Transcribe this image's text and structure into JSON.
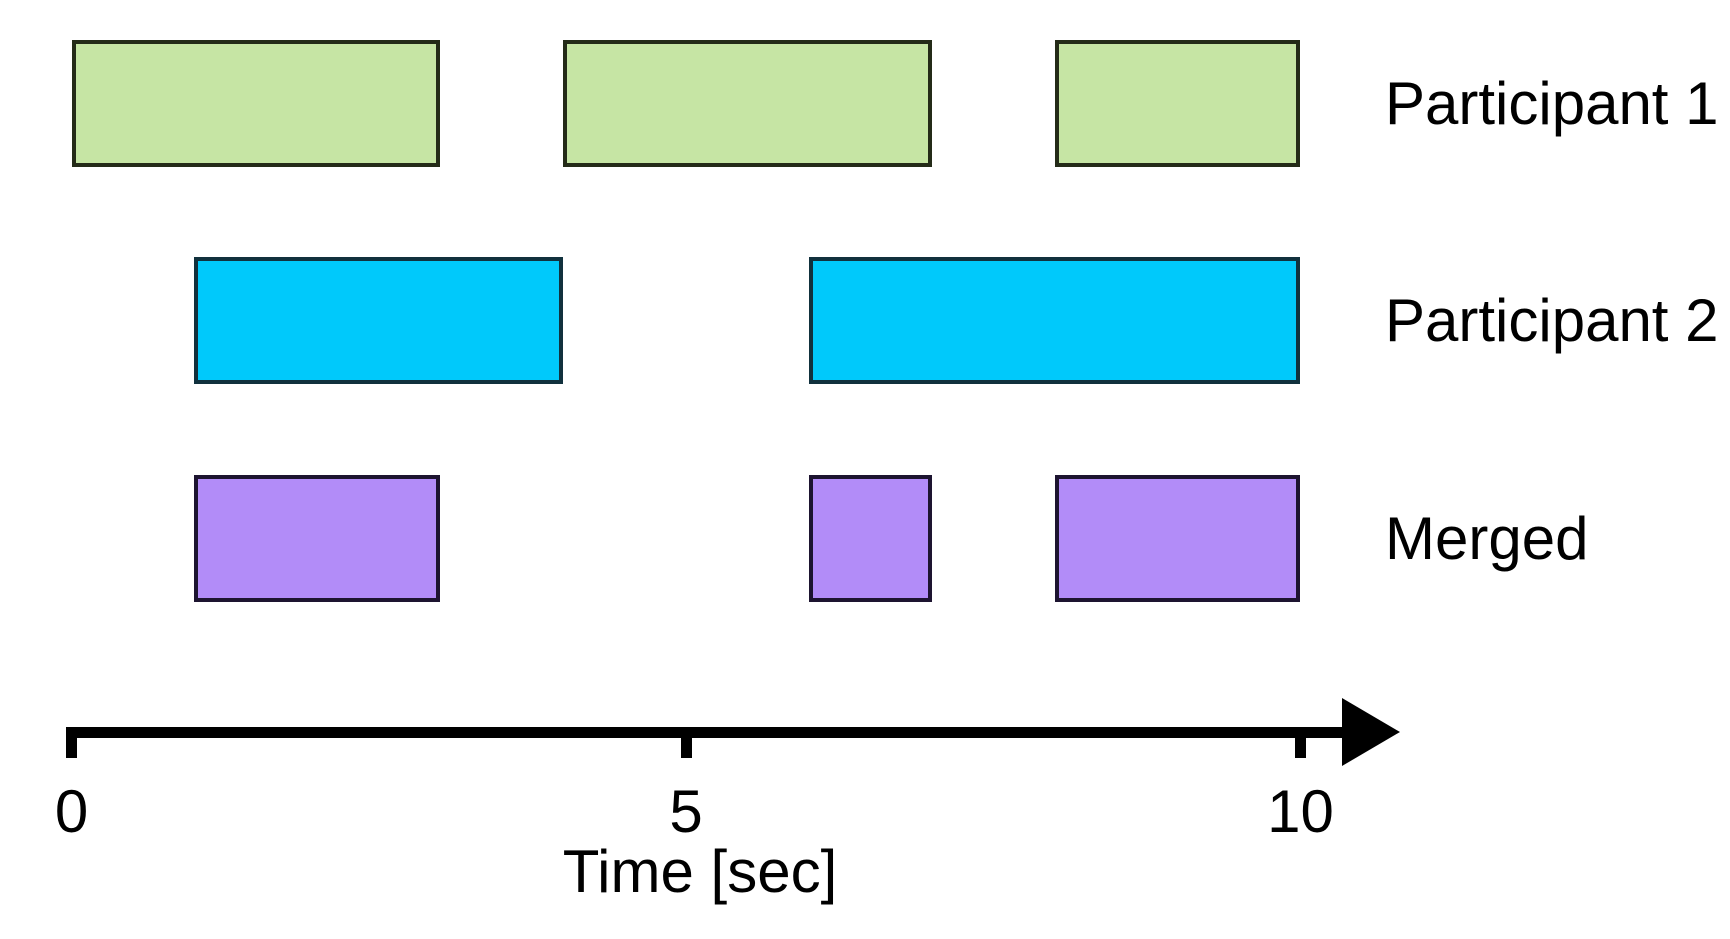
{
  "chart_data": {
    "type": "interval-timeline",
    "title": "",
    "xlabel": "Time [sec]",
    "x_ticks": [
      0,
      5,
      10
    ],
    "x_range": [
      0,
      10.8
    ],
    "grid": false,
    "legend_position": "right-of-rows",
    "axis_color": "#000000",
    "text_color": "#000000",
    "rows": [
      {
        "label": "Participant 1",
        "color": "#C6E5A4",
        "border_color": "#242B18",
        "intervals": [
          [
            0,
            3
          ],
          [
            4,
            7
          ],
          [
            8,
            10
          ]
        ]
      },
      {
        "label": "Participant 2",
        "color": "#00C9FB",
        "border_color": "#11313D",
        "intervals": [
          [
            1,
            4
          ],
          [
            6,
            10
          ]
        ]
      },
      {
        "label": "Merged",
        "color": "#B28CF8",
        "border_color": "#1D1430",
        "intervals": [
          [
            1,
            3
          ],
          [
            6,
            7
          ],
          [
            8,
            10
          ]
        ]
      }
    ]
  }
}
